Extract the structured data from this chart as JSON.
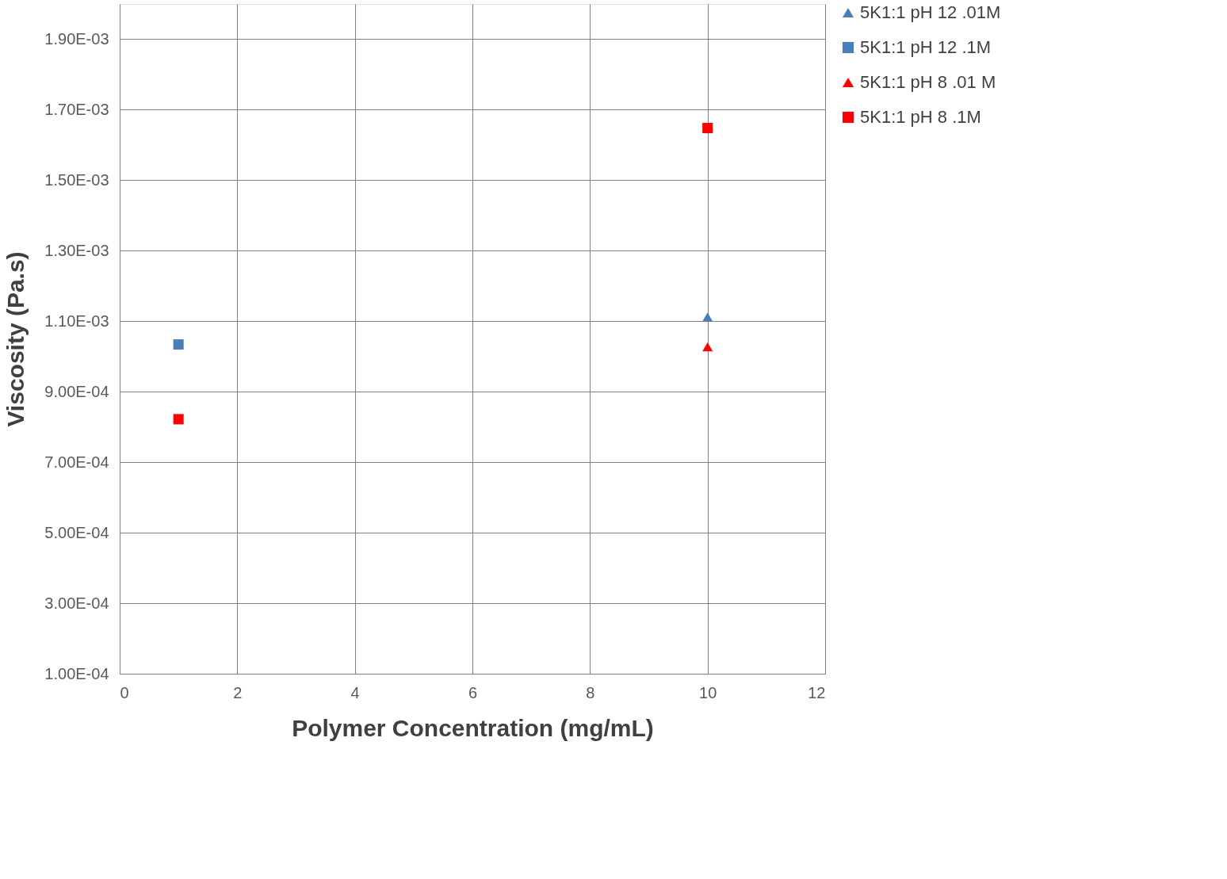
{
  "chart_data": {
    "type": "scatter",
    "xlabel": "Polymer Concentration (mg/mL)",
    "ylabel": "Viscosity (Pa.s)",
    "x": [
      1,
      10
    ],
    "series": [
      {
        "name": "5K1:1 pH 12 .01M",
        "color": "#4a7ebb",
        "marker": "triangle",
        "values": [
          null,
          0.001112
        ]
      },
      {
        "name": "5K1:1 pH 12 .1M",
        "color": "#4a7ebb",
        "marker": "square",
        "values": [
          0.001034,
          null
        ]
      },
      {
        "name": "5K1:1 pH 8 .01 M",
        "color": "#ff0000",
        "marker": "triangle",
        "values": [
          null,
          0.001027
        ]
      },
      {
        "name": "5K1:1 pH 8 .1M",
        "color": "#ff0000",
        "marker": "square",
        "values": [
          0.000822,
          0.001648
        ]
      }
    ],
    "xlim": [
      0,
      12
    ],
    "xticks": [
      0,
      2,
      4,
      6,
      8,
      10,
      12
    ],
    "ylim": [
      0.0001,
      0.002
    ],
    "yticks": [
      {
        "value": 0.0001,
        "label": "1.00E-04"
      },
      {
        "value": 0.0003,
        "label": "3.00E-04"
      },
      {
        "value": 0.0005,
        "label": "5.00E-04"
      },
      {
        "value": 0.0007,
        "label": "7.00E-04"
      },
      {
        "value": 0.0009,
        "label": "9.00E-04"
      },
      {
        "value": 0.0011,
        "label": "1.10E-03"
      },
      {
        "value": 0.0013,
        "label": "1.30E-03"
      },
      {
        "value": 0.0015,
        "label": "1.50E-03"
      },
      {
        "value": 0.0017,
        "label": "1.70E-03"
      },
      {
        "value": 0.0019,
        "label": "1.90E-03"
      }
    ],
    "grid": true,
    "legend": "right"
  }
}
